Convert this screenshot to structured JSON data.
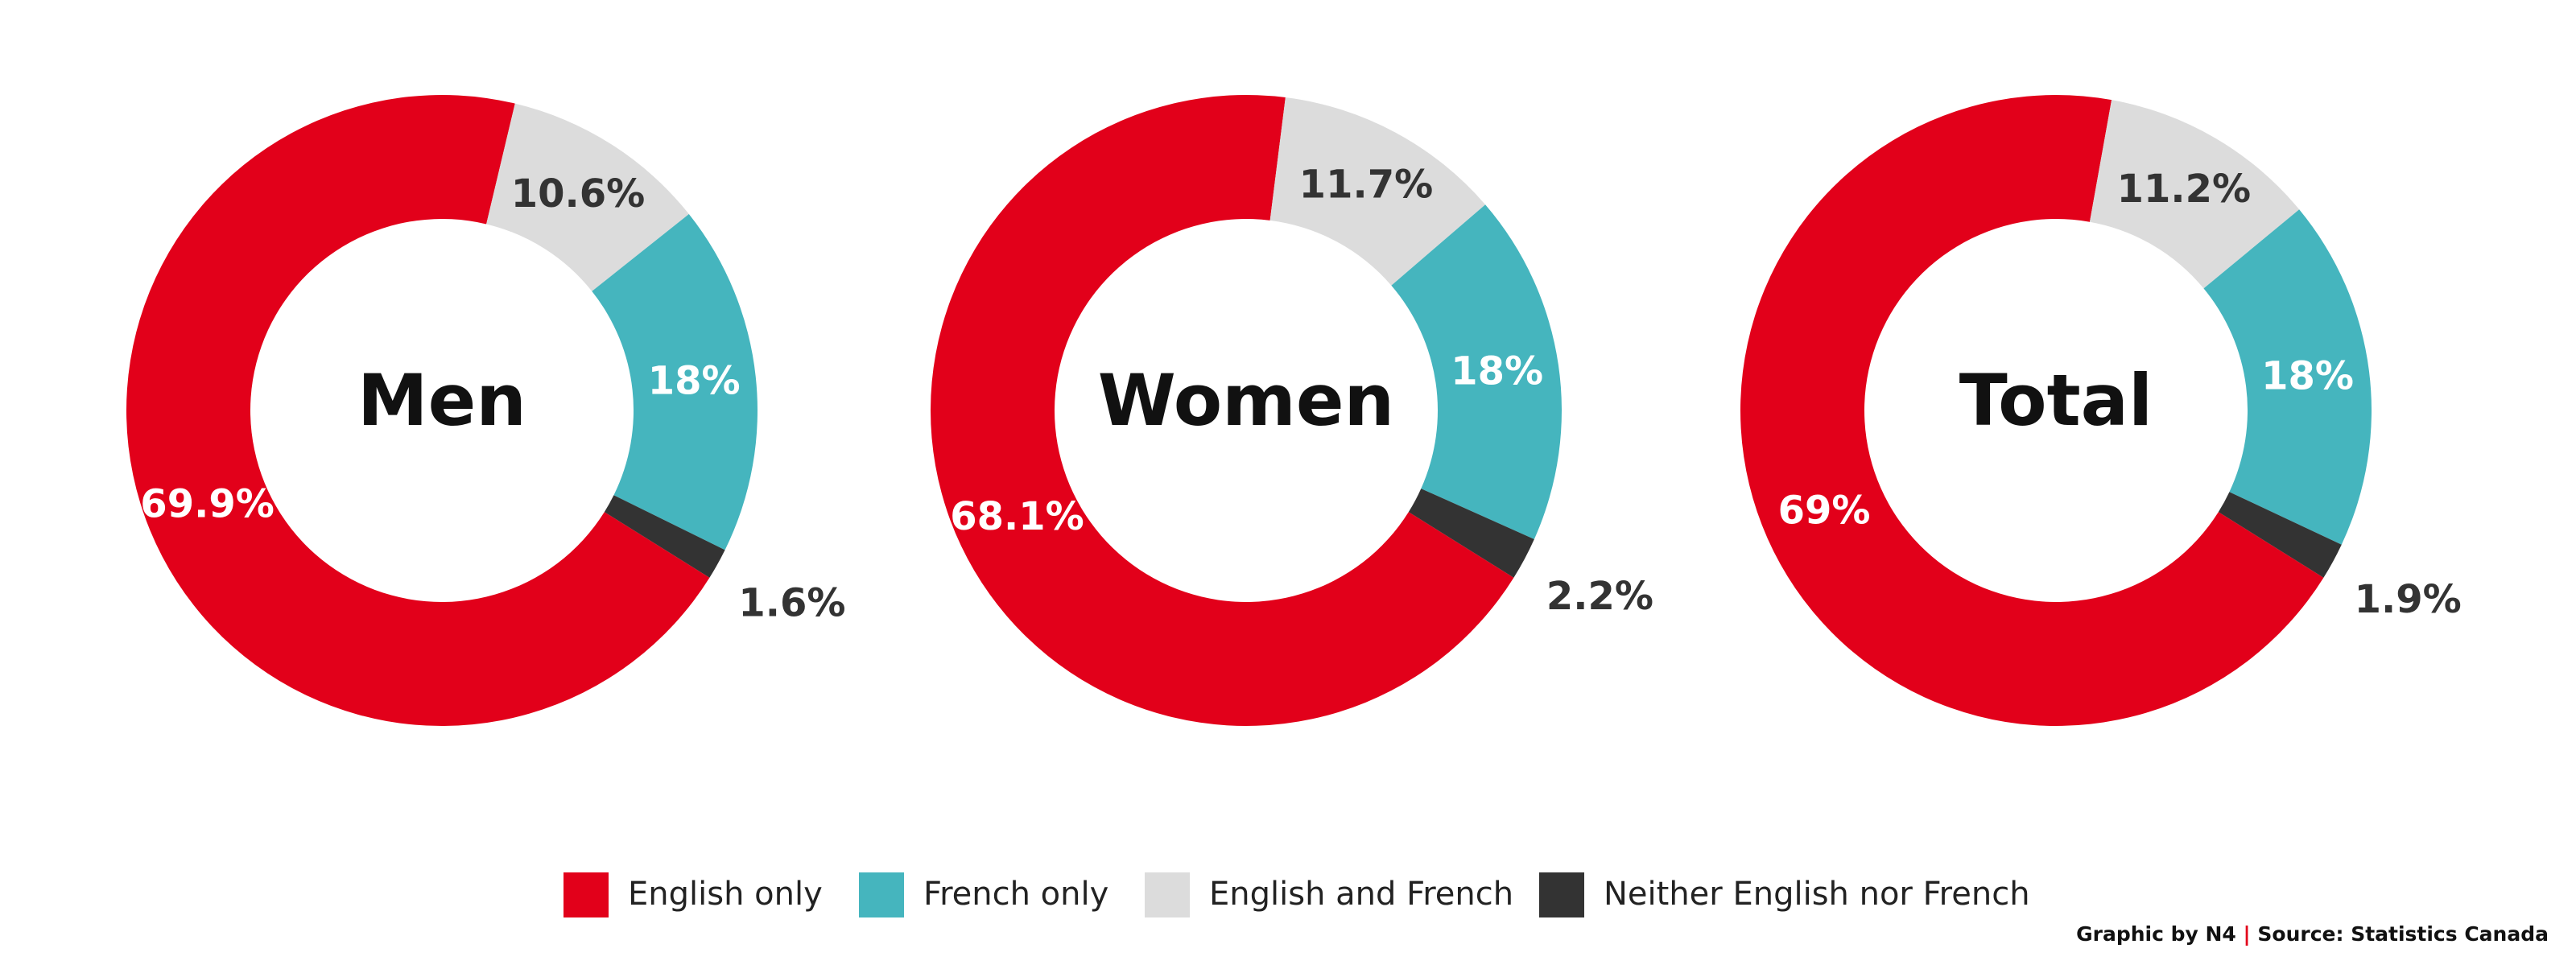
{
  "chart_data": [
    {
      "type": "pie",
      "title": "Men",
      "categories": [
        "English only",
        "French only",
        "English and French",
        "Neither English nor French"
      ],
      "values": [
        69.9,
        18,
        10.6,
        1.6
      ],
      "value_labels": [
        "69.9%",
        "18%",
        "10.6%",
        "1.6%"
      ],
      "colors": [
        "#e2001a",
        "#45b5be",
        "#dcdcdc",
        "#333333"
      ]
    },
    {
      "type": "pie",
      "title": "Women",
      "categories": [
        "English only",
        "French only",
        "English and French",
        "Neither English nor French"
      ],
      "values": [
        68.1,
        18,
        11.7,
        2.2
      ],
      "value_labels": [
        "68.1%",
        "18%",
        "11.7%",
        "2.2%"
      ],
      "colors": [
        "#e2001a",
        "#45b5be",
        "#dcdcdc",
        "#333333"
      ]
    },
    {
      "type": "pie",
      "title": "Total",
      "categories": [
        "English only",
        "French only",
        "English and French",
        "Neither English nor French"
      ],
      "values": [
        69,
        18,
        11.2,
        1.9
      ],
      "value_labels": [
        "69%",
        "18%",
        "11.2%",
        "1.9%"
      ],
      "colors": [
        "#e2001a",
        "#45b5be",
        "#dcdcdc",
        "#333333"
      ]
    }
  ],
  "credit": {
    "graphic_by": "Graphic by N4",
    "separator": "|",
    "source": "Source: Statistics Canada"
  }
}
